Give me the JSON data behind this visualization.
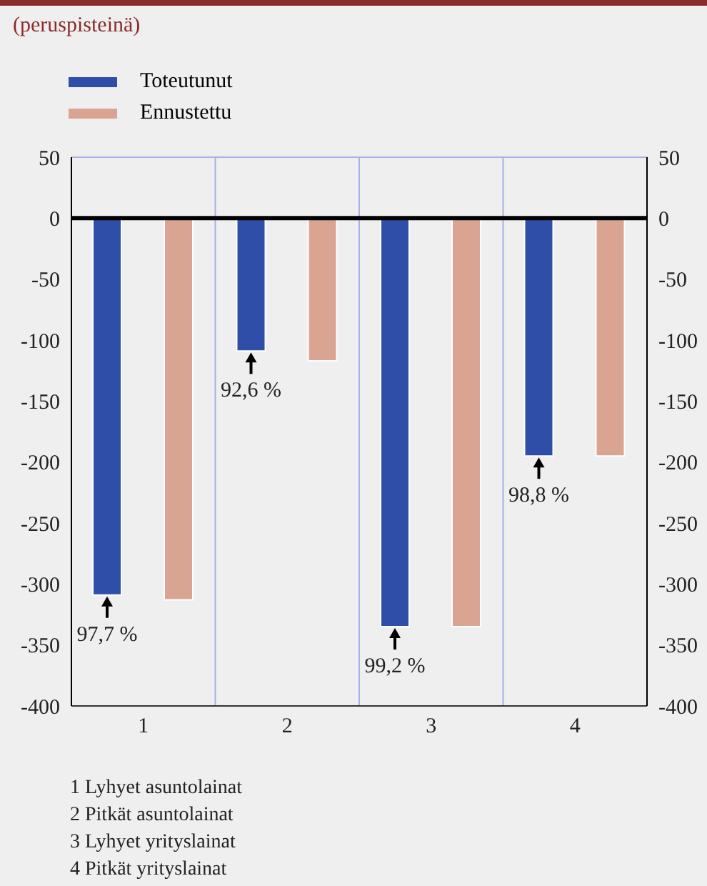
{
  "chart_data": {
    "type": "bar",
    "subtitle": "(peruspisteinä)",
    "categories": [
      "1",
      "2",
      "3",
      "4"
    ],
    "series": [
      {
        "name": "Toteutunut",
        "color": "#2e4ea8",
        "values": [
          -309,
          -109,
          -335,
          -195
        ]
      },
      {
        "name": "Ennustettu",
        "color": "#d9a592",
        "values": [
          -313,
          -117,
          -335,
          -195
        ]
      }
    ],
    "ylim": [
      -400,
      50
    ],
    "yticks": [
      50,
      0,
      -50,
      -100,
      -150,
      -200,
      -250,
      -300,
      -350,
      -400
    ],
    "y2lim": [
      -400,
      50
    ],
    "y2ticks": [
      50,
      0,
      -50,
      -100,
      -150,
      -200,
      -250,
      -300,
      -350,
      -400
    ],
    "grid": true,
    "legend": "top left",
    "ref_lines": [
      {
        "axis": "y",
        "value": 0,
        "color": "#000000"
      }
    ],
    "annotations": [
      "97,7 %",
      "92,6 %",
      "99,2 %",
      "98,8 %",
      "1 Lyhyet asuntolainat",
      "2 Pitkät asuntolainat",
      "3 Lyhyet yrityslainat",
      "4 Pitkät yrityslainat"
    ]
  }
}
